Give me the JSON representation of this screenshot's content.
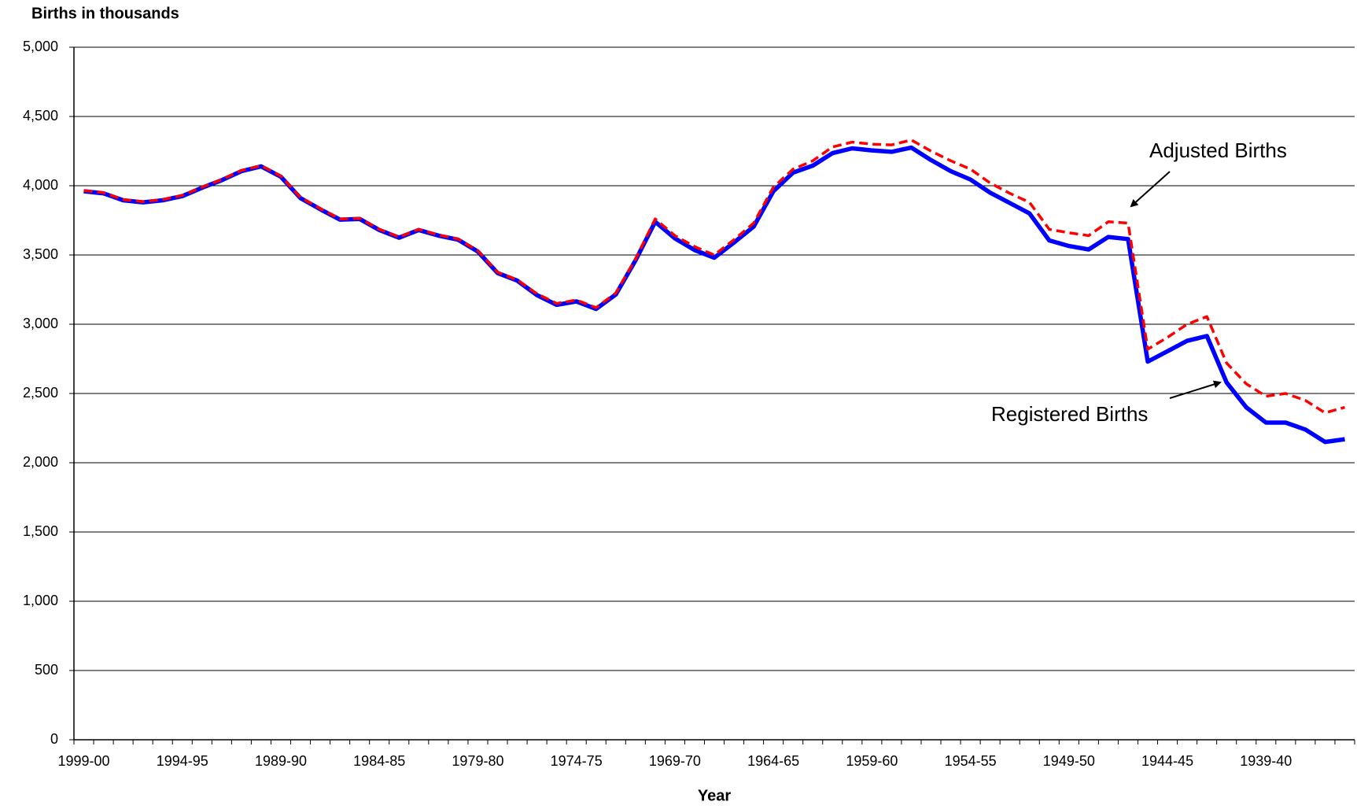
{
  "chart_data": {
    "type": "line",
    "y_axis_title": "Births in thousands",
    "x_axis_title": "Year",
    "categories": [
      "1999-00",
      null,
      null,
      null,
      null,
      "1994-95",
      null,
      null,
      null,
      null,
      "1989-90",
      null,
      null,
      null,
      null,
      "1984-85",
      null,
      null,
      null,
      null,
      "1979-80",
      null,
      null,
      null,
      null,
      "1974-75",
      null,
      null,
      null,
      null,
      "1969-70",
      null,
      null,
      null,
      null,
      "1964-65",
      null,
      null,
      null,
      null,
      "1959-60",
      null,
      null,
      null,
      null,
      "1954-55",
      null,
      null,
      null,
      null,
      "1949-50",
      null,
      null,
      null,
      null,
      "1944-45",
      null,
      null,
      null,
      null,
      "1939-40",
      null,
      null,
      null,
      null
    ],
    "series": [
      {
        "name": "Registered Births",
        "color": "#0000ff",
        "values": [
          3960,
          3945,
          3895,
          3880,
          3895,
          3925,
          3985,
          4040,
          4105,
          4140,
          4065,
          3910,
          3830,
          3755,
          3760,
          3680,
          3625,
          3680,
          3640,
          3610,
          3525,
          3370,
          3315,
          3210,
          3140,
          3165,
          3110,
          3215,
          3460,
          3740,
          3620,
          3535,
          3480,
          3590,
          3705,
          3960,
          4095,
          4145,
          4235,
          4270,
          4255,
          4245,
          4275,
          4185,
          4105,
          4045,
          3950,
          3875,
          3800,
          3605,
          3565,
          3540,
          3630,
          3615,
          2730,
          2805,
          2880,
          2915,
          2580,
          2400,
          2290,
          2290,
          2240,
          2150,
          2170
        ]
      },
      {
        "name": "Adjusted Births",
        "color": "#ff0000",
        "values": [
          3965,
          3950,
          3900,
          3885,
          3900,
          3930,
          3990,
          4045,
          4110,
          4145,
          4070,
          3915,
          3835,
          3760,
          3765,
          3685,
          3630,
          3685,
          3645,
          3615,
          3530,
          3375,
          3320,
          3220,
          3150,
          3175,
          3120,
          3225,
          3470,
          3760,
          3640,
          3560,
          3500,
          3610,
          3730,
          3990,
          4120,
          4180,
          4280,
          4315,
          4300,
          4295,
          4330,
          4250,
          4180,
          4120,
          4020,
          3945,
          3880,
          3685,
          3660,
          3640,
          3740,
          3730,
          2820,
          2905,
          3000,
          3055,
          2720,
          2570,
          2480,
          2500,
          2450,
          2360,
          2400
        ]
      }
    ],
    "ylim": [
      0,
      5000
    ],
    "yticks": [
      0,
      500,
      {
        "value": 1000,
        "label": "1,000"
      },
      {
        "value": 1500,
        "label": "1,500"
      },
      {
        "value": 2000,
        "label": "2,000"
      },
      {
        "value": 2500,
        "label": "2,500"
      },
      {
        "value": 3000,
        "label": "3,000"
      },
      {
        "value": 3500,
        "label": "3,500"
      },
      {
        "value": 4000,
        "label": "4,000"
      },
      {
        "value": 4500,
        "label": "4,500"
      },
      {
        "value": 5000,
        "label": "5,000"
      }
    ],
    "grid": true
  }
}
